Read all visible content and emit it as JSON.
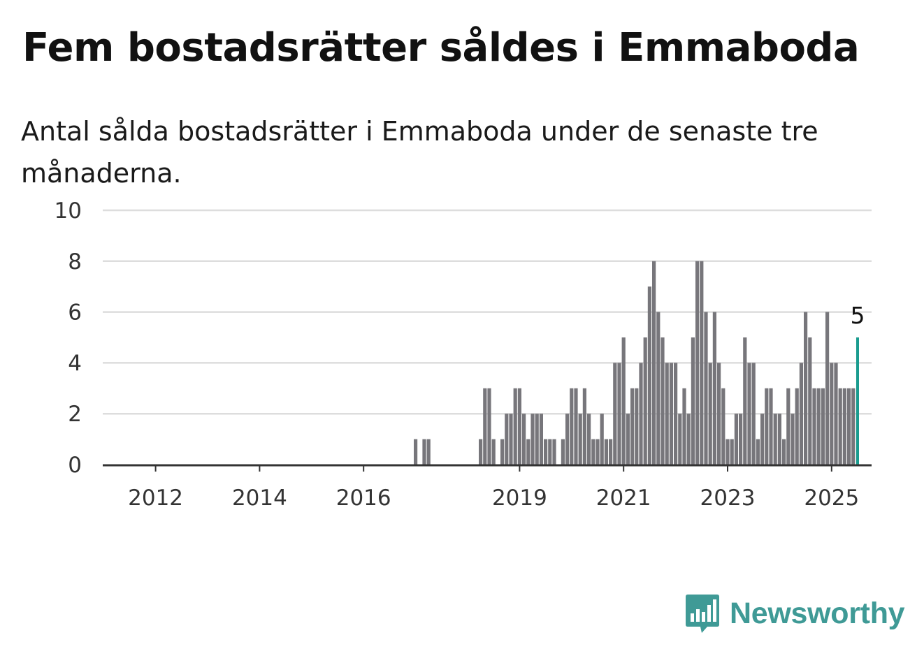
{
  "colors": {
    "bar": "#77767b",
    "highlight": "#1a9c8f",
    "grid": "#dddddd",
    "axis": "#333333",
    "brand": "#3f9a96"
  },
  "brand": {
    "name": "Newsworthy",
    "icon": "bar-chart-speech-bubble-icon"
  },
  "chart_data": {
    "type": "bar",
    "title": "Fem bostadsrätter såldes i Emmaboda",
    "subtitle": "Antal sålda bostadsrätter i Emmaboda under de senaste tre månaderna.",
    "xlabel": "",
    "ylabel": "",
    "ylim": [
      0,
      10
    ],
    "yticks": [
      0,
      2,
      4,
      6,
      8,
      10
    ],
    "xticks": [
      "2012",
      "2014",
      "2016",
      "2019",
      "2021",
      "2023",
      "2025"
    ],
    "x_start": "2011-05",
    "x_end": "2025-05",
    "grid": true,
    "legend": "none",
    "highlight_label": "5",
    "series": [
      {
        "values": [
          0,
          0,
          0,
          0,
          0,
          0,
          0,
          0,
          0,
          0,
          0,
          0,
          0,
          0,
          0,
          0,
          0,
          0,
          0,
          0,
          0,
          0,
          0,
          0,
          0,
          0,
          0,
          0,
          0,
          0,
          0,
          0,
          0,
          0,
          0,
          0,
          0,
          0,
          0,
          0,
          0,
          0,
          0,
          0,
          0,
          0,
          0,
          0,
          0,
          0,
          0,
          0,
          0,
          0,
          0,
          0,
          0,
          0,
          0,
          0,
          0,
          0,
          0,
          0,
          0,
          0,
          0,
          0,
          1,
          0,
          1,
          1,
          0,
          0,
          0,
          0,
          0,
          0,
          0,
          0,
          0,
          0,
          0,
          1,
          3,
          3,
          1,
          0,
          1,
          2,
          2,
          3,
          3,
          2,
          1,
          2,
          2,
          2,
          1,
          1,
          1,
          0,
          1,
          2,
          3,
          3,
          2,
          3,
          2,
          1,
          1,
          2,
          1,
          1,
          4,
          4,
          5,
          2,
          3,
          3,
          4,
          5,
          7,
          8,
          6,
          5,
          4,
          4,
          4,
          2,
          3,
          2,
          5,
          8,
          8,
          6,
          4,
          6,
          4,
          3,
          1,
          1,
          2,
          2,
          5,
          4,
          4,
          1,
          2,
          3,
          3,
          2,
          2,
          1,
          3,
          2,
          3,
          4,
          6,
          5,
          3,
          3,
          3,
          6,
          4,
          4,
          3,
          3,
          3,
          3,
          5
        ]
      }
    ]
  }
}
